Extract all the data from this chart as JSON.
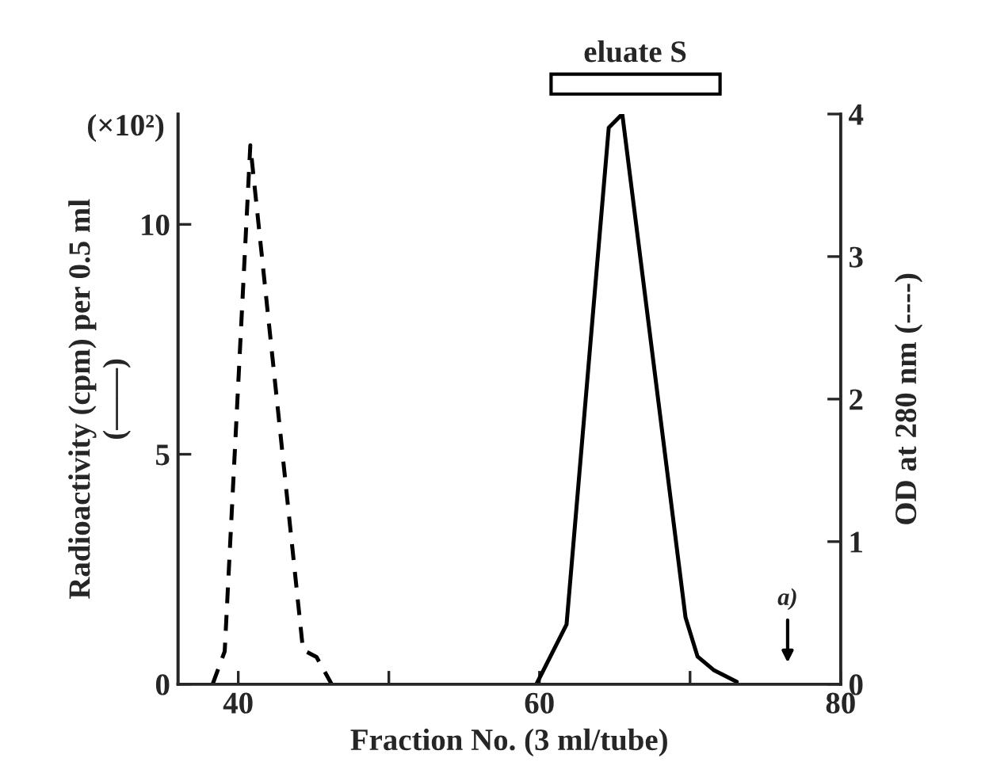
{
  "chart_data": {
    "type": "line",
    "xlabel": "Fraction No. (3 ml/tube)",
    "ylabel": "Radioactivity (cpm) per 0.5 ml\n(——)",
    "y2label": "OD at 280 nm (----)",
    "xlim": [
      36,
      80
    ],
    "xticks": [
      40,
      {
        "value": 50,
        "label": null
      },
      60,
      {
        "value": 70,
        "label": null
      },
      80
    ],
    "ylim": [
      0,
      12.4
    ],
    "yticks": [
      0,
      5,
      10
    ],
    "y2lim": [
      0,
      4
    ],
    "y2ticks": [
      0,
      1,
      2,
      3,
      4
    ],
    "series": [
      {
        "color": "#000000",
        "line_style": "solid",
        "x": [
          59.8,
          61.8,
          64.6,
          65.5,
          69.7,
          70.5,
          71.6,
          73.1
        ],
        "values": [
          0,
          1.3,
          12.1,
          12.4,
          1.45,
          0.6,
          0.3,
          0.05
        ]
      },
      {
        "color": "#000000",
        "line_style": "dashed",
        "axis": "y2",
        "x": [
          38.3,
          39.1,
          40.8,
          44.3,
          45.2,
          46.2
        ],
        "values": [
          0,
          0.23,
          3.78,
          0.24,
          0.19,
          0
        ]
      }
    ],
    "annotations": [
      "(×10²)",
      "eluate S",
      "a)"
    ],
    "grid": false,
    "legend": false,
    "marker": "none"
  }
}
